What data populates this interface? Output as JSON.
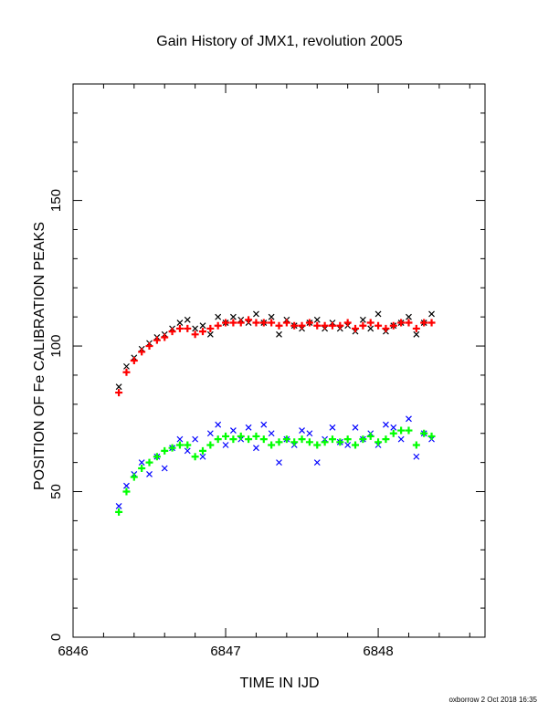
{
  "chart_data": {
    "type": "scatter",
    "title": "Gain History of JMX1, revolution 2005",
    "xlabel": "TIME IN IJD",
    "ylabel": "POSITION OF Fe CALIBRATION PEAKS",
    "xlim": [
      6846.0,
      6848.7
    ],
    "ylim": [
      0,
      190
    ],
    "x_ticks": [
      "6846",
      "6847",
      "6848"
    ],
    "y_ticks": [
      "0",
      "50",
      "100",
      "150"
    ],
    "grid": false,
    "legend": "none",
    "series": [
      {
        "marker": "x",
        "color": "#000000",
        "x": [
          6846.3,
          6846.35,
          6846.4,
          6846.45,
          6846.5,
          6846.55,
          6846.6,
          6846.65,
          6846.7,
          6846.75,
          6846.8,
          6846.85,
          6846.9,
          6846.95,
          6847.0,
          6847.05,
          6847.1,
          6847.15,
          6847.2,
          6847.25,
          6847.3,
          6847.35,
          6847.4,
          6847.45,
          6847.5,
          6847.55,
          6847.6,
          6847.65,
          6847.7,
          6847.75,
          6847.8,
          6847.85,
          6847.9,
          6847.95,
          6848.0,
          6848.05,
          6848.1,
          6848.15,
          6848.2,
          6848.25,
          6848.3,
          6848.35
        ],
        "y": [
          86,
          93,
          96,
          99,
          101,
          103,
          104,
          106,
          108,
          109,
          106,
          107,
          104,
          110,
          108,
          110,
          109,
          108,
          111,
          108,
          110,
          104,
          109,
          107,
          106,
          108,
          109,
          106,
          108,
          106,
          107,
          105,
          109,
          106,
          111,
          105,
          107,
          108,
          110,
          104,
          108,
          111
        ]
      },
      {
        "marker": "+",
        "color": "#ff0000",
        "x": [
          6846.3,
          6846.35,
          6846.4,
          6846.45,
          6846.5,
          6846.55,
          6846.6,
          6846.65,
          6846.7,
          6846.75,
          6846.8,
          6846.85,
          6846.9,
          6846.95,
          6847.0,
          6847.05,
          6847.1,
          6847.15,
          6847.2,
          6847.25,
          6847.3,
          6847.35,
          6847.4,
          6847.45,
          6847.5,
          6847.55,
          6847.6,
          6847.65,
          6847.7,
          6847.75,
          6847.8,
          6847.85,
          6847.9,
          6847.95,
          6848.0,
          6848.05,
          6848.1,
          6848.15,
          6848.2,
          6848.25,
          6848.3,
          6848.35
        ],
        "y": [
          84,
          91,
          95,
          98,
          100,
          102,
          103,
          105,
          106,
          106,
          104,
          105,
          106,
          107,
          108,
          108,
          108,
          109,
          108,
          108,
          108,
          107,
          108,
          107,
          107,
          108,
          107,
          107,
          107,
          107,
          108,
          106,
          107,
          108,
          107,
          106,
          107,
          108,
          108,
          106,
          108,
          108
        ]
      },
      {
        "marker": "x",
        "color": "#0000ff",
        "x": [
          6846.3,
          6846.35,
          6846.4,
          6846.45,
          6846.5,
          6846.55,
          6846.6,
          6846.65,
          6846.7,
          6846.75,
          6846.8,
          6846.85,
          6846.9,
          6846.95,
          6847.0,
          6847.05,
          6847.1,
          6847.15,
          6847.2,
          6847.25,
          6847.3,
          6847.35,
          6847.4,
          6847.45,
          6847.5,
          6847.55,
          6847.6,
          6847.65,
          6847.7,
          6847.75,
          6847.8,
          6847.85,
          6847.9,
          6847.95,
          6848.0,
          6848.05,
          6848.1,
          6848.15,
          6848.2,
          6848.25,
          6848.3,
          6848.35
        ],
        "y": [
          45,
          52,
          56,
          60,
          56,
          62,
          58,
          65,
          68,
          64,
          68,
          62,
          70,
          73,
          66,
          71,
          68,
          72,
          65,
          73,
          70,
          60,
          68,
          66,
          71,
          70,
          60,
          68,
          72,
          67,
          66,
          72,
          68,
          70,
          66,
          73,
          72,
          68,
          75,
          62,
          70,
          68
        ]
      },
      {
        "marker": "+",
        "color": "#00ff00",
        "x": [
          6846.3,
          6846.35,
          6846.4,
          6846.45,
          6846.5,
          6846.55,
          6846.6,
          6846.65,
          6846.7,
          6846.75,
          6846.8,
          6846.85,
          6846.9,
          6846.95,
          6847.0,
          6847.05,
          6847.1,
          6847.15,
          6847.2,
          6847.25,
          6847.3,
          6847.35,
          6847.4,
          6847.45,
          6847.5,
          6847.55,
          6847.6,
          6847.65,
          6847.7,
          6847.75,
          6847.8,
          6847.85,
          6847.9,
          6847.95,
          6848.0,
          6848.05,
          6848.1,
          6848.15,
          6848.2,
          6848.25,
          6848.3,
          6848.35
        ],
        "y": [
          43,
          50,
          55,
          58,
          60,
          62,
          64,
          65,
          66,
          66,
          62,
          64,
          66,
          68,
          69,
          68,
          69,
          68,
          69,
          68,
          66,
          67,
          68,
          67,
          68,
          67,
          66,
          67,
          68,
          67,
          68,
          66,
          68,
          69,
          67,
          68,
          70,
          71,
          71,
          66,
          70,
          69
        ]
      }
    ]
  },
  "footer": "oxborrow  2  Oct  2018 16:35"
}
